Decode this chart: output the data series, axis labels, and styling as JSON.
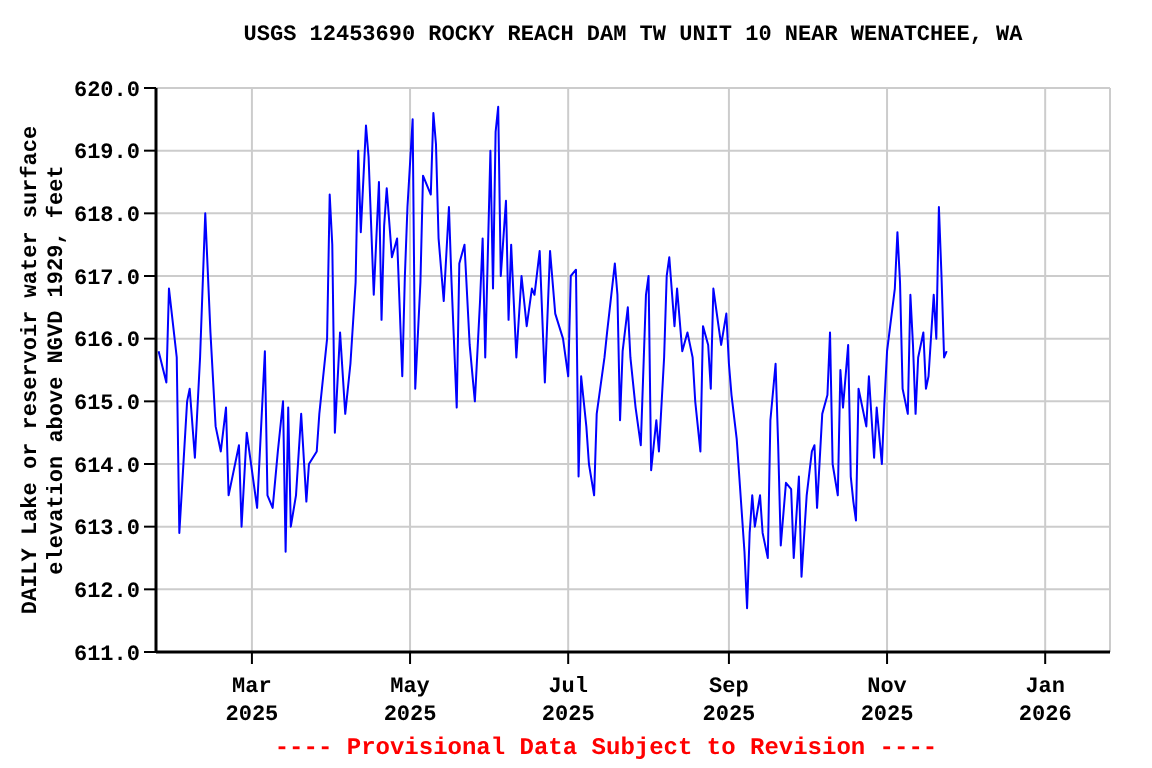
{
  "chart_data": {
    "type": "line",
    "title": "USGS 12453690 ROCKY REACH DAM TW UNIT 10 NEAR WENATCHEE, WA",
    "ylabel": "DAILY Lake or reservoir water surface\nelevation above NGVD 1929, feet",
    "annotations": [
      "---- Provisional Data Subject to Revision ----"
    ],
    "x": [
      "2025-01-24",
      "2025-01-27",
      "2025-01-28",
      "2025-01-31",
      "2025-02-01",
      "2025-02-04",
      "2025-02-05",
      "2025-02-07",
      "2025-02-09",
      "2025-02-11",
      "2025-02-13",
      "2025-02-15",
      "2025-02-17",
      "2025-02-19",
      "2025-02-20",
      "2025-02-24",
      "2025-02-25",
      "2025-02-27",
      "2025-03-02",
      "2025-03-03",
      "2025-03-06",
      "2025-03-07",
      "2025-03-09",
      "2025-03-11",
      "2025-03-13",
      "2025-03-14",
      "2025-03-15",
      "2025-03-16",
      "2025-03-18",
      "2025-03-20",
      "2025-03-22",
      "2025-03-23",
      "2025-03-26",
      "2025-03-27",
      "2025-03-30",
      "2025-03-31",
      "2025-04-01",
      "2025-04-02",
      "2025-04-04",
      "2025-04-06",
      "2025-04-08",
      "2025-04-10",
      "2025-04-11",
      "2025-04-12",
      "2025-04-14",
      "2025-04-15",
      "2025-04-17",
      "2025-04-19",
      "2025-04-20",
      "2025-04-21",
      "2025-04-22",
      "2025-04-24",
      "2025-04-26",
      "2025-04-28",
      "2025-04-29",
      "2025-04-30",
      "2025-05-02",
      "2025-05-03",
      "2025-05-05",
      "2025-05-06",
      "2025-05-09",
      "2025-05-10",
      "2025-05-11",
      "2025-05-12",
      "2025-05-14",
      "2025-05-16",
      "2025-05-17",
      "2025-05-19",
      "2025-05-20",
      "2025-05-22",
      "2025-05-24",
      "2025-05-26",
      "2025-05-28",
      "2025-05-29",
      "2025-05-30",
      "2025-06-01",
      "2025-06-02",
      "2025-06-03",
      "2025-06-04",
      "2025-06-05",
      "2025-06-07",
      "2025-06-08",
      "2025-06-09",
      "2025-06-11",
      "2025-06-13",
      "2025-06-15",
      "2025-06-17",
      "2025-06-18",
      "2025-06-20",
      "2025-06-22",
      "2025-06-24",
      "2025-06-26",
      "2025-06-29",
      "2025-07-01",
      "2025-07-02",
      "2025-07-04",
      "2025-07-05",
      "2025-07-06",
      "2025-07-08",
      "2025-07-09",
      "2025-07-11",
      "2025-07-12",
      "2025-07-15",
      "2025-07-16",
      "2025-07-19",
      "2025-07-20",
      "2025-07-21",
      "2025-07-22",
      "2025-07-24",
      "2025-07-25",
      "2025-07-27",
      "2025-07-29",
      "2025-07-31",
      "2025-08-01",
      "2025-08-02",
      "2025-08-04",
      "2025-08-05",
      "2025-08-07",
      "2025-08-08",
      "2025-08-09",
      "2025-08-11",
      "2025-08-12",
      "2025-08-14",
      "2025-08-16",
      "2025-08-18",
      "2025-08-19",
      "2025-08-21",
      "2025-08-22",
      "2025-08-24",
      "2025-08-25",
      "2025-08-26",
      "2025-08-28",
      "2025-08-29",
      "2025-08-31",
      "2025-09-01",
      "2025-09-02",
      "2025-09-04",
      "2025-09-05",
      "2025-09-07",
      "2025-09-08",
      "2025-09-09",
      "2025-09-10",
      "2025-09-11",
      "2025-09-13",
      "2025-09-14",
      "2025-09-16",
      "2025-09-17",
      "2025-09-19",
      "2025-09-20",
      "2025-09-21",
      "2025-09-23",
      "2025-09-25",
      "2025-09-26",
      "2025-09-28",
      "2025-09-29",
      "2025-10-01",
      "2025-10-03",
      "2025-10-04",
      "2025-10-05",
      "2025-10-07",
      "2025-10-09",
      "2025-10-10",
      "2025-10-11",
      "2025-10-13",
      "2025-10-14",
      "2025-10-15",
      "2025-10-17",
      "2025-10-18",
      "2025-10-19",
      "2025-10-20",
      "2025-10-21",
      "2025-10-24",
      "2025-10-25",
      "2025-10-27",
      "2025-10-28",
      "2025-10-30",
      "2025-10-31",
      "2025-11-01",
      "2025-11-04",
      "2025-11-05",
      "2025-11-06",
      "2025-11-07",
      "2025-11-09",
      "2025-11-10",
      "2025-11-11",
      "2025-11-12",
      "2025-11-13",
      "2025-11-15",
      "2025-11-16",
      "2025-11-17",
      "2025-11-19",
      "2025-11-20",
      "2025-11-21",
      "2025-11-22",
      "2025-11-23",
      "2025-11-24"
    ],
    "series": [
      {
        "color": "#0000ff",
        "values": [
          615.8,
          615.3,
          616.8,
          615.7,
          612.9,
          615.0,
          615.2,
          614.1,
          615.7,
          618.0,
          616.1,
          614.6,
          614.2,
          614.9,
          613.5,
          614.3,
          613.0,
          614.5,
          613.6,
          613.3,
          615.8,
          613.5,
          613.3,
          614.2,
          615.0,
          612.6,
          614.9,
          613.0,
          613.5,
          614.8,
          613.4,
          614.0,
          614.2,
          614.8,
          616.0,
          618.3,
          617.5,
          614.5,
          616.1,
          614.8,
          615.6,
          616.9,
          619.0,
          617.7,
          619.4,
          618.9,
          616.7,
          618.5,
          616.3,
          617.8,
          618.4,
          617.3,
          617.6,
          615.4,
          617.0,
          618.1,
          619.5,
          615.2,
          616.9,
          618.6,
          618.3,
          619.6,
          619.1,
          617.6,
          616.6,
          618.1,
          616.9,
          614.9,
          617.2,
          617.5,
          615.9,
          615.0,
          616.6,
          617.6,
          615.7,
          619.0,
          616.8,
          619.3,
          619.7,
          617.0,
          618.2,
          616.3,
          617.5,
          615.7,
          617.0,
          616.2,
          616.8,
          616.7,
          617.4,
          615.3,
          617.4,
          616.4,
          616.0,
          615.4,
          617.0,
          617.1,
          613.8,
          615.4,
          614.6,
          614.0,
          613.5,
          614.8,
          615.7,
          616.1,
          617.2,
          616.7,
          614.7,
          615.8,
          616.5,
          615.7,
          614.9,
          614.3,
          616.7,
          617.0,
          613.9,
          614.7,
          614.2,
          615.7,
          617.0,
          617.3,
          616.2,
          616.8,
          615.8,
          616.1,
          615.7,
          615.0,
          614.2,
          616.2,
          615.9,
          615.2,
          616.8,
          616.2,
          615.9,
          616.4,
          615.6,
          615.1,
          614.4,
          613.8,
          612.6,
          611.7,
          612.9,
          613.5,
          613.0,
          613.5,
          612.9,
          612.5,
          614.7,
          615.6,
          614.3,
          612.7,
          613.7,
          613.6,
          612.5,
          613.8,
          612.2,
          613.5,
          614.2,
          614.3,
          613.3,
          614.8,
          615.1,
          616.1,
          614.0,
          613.5,
          615.5,
          614.9,
          615.9,
          613.8,
          613.4,
          613.1,
          615.2,
          614.6,
          615.4,
          614.1,
          614.9,
          614.0,
          615.0,
          615.8,
          616.8,
          617.7,
          616.9,
          615.2,
          614.8,
          616.7,
          615.9,
          614.8,
          615.7,
          616.1,
          615.2,
          615.4,
          616.7,
          616.0,
          618.1,
          617.0,
          615.7,
          615.8
        ]
      }
    ],
    "xlim": [
      "2025-01-23",
      "2026-01-26"
    ],
    "xticks": [
      {
        "value": "2025-03-01",
        "label": "Mar\n2025"
      },
      {
        "value": "2025-05-01",
        "label": "May\n2025"
      },
      {
        "value": "2025-07-01",
        "label": "Jul\n2025"
      },
      {
        "value": "2025-09-01",
        "label": "Sep\n2025"
      },
      {
        "value": "2025-11-01",
        "label": "Nov\n2025"
      },
      {
        "value": "2026-01-01",
        "label": "Jan\n2026"
      }
    ],
    "ylim": [
      611,
      620
    ],
    "yticks": [
      {
        "value": 611,
        "label": "611.0"
      },
      {
        "value": 612,
        "label": "612.0"
      },
      {
        "value": 613,
        "label": "613.0"
      },
      {
        "value": 614,
        "label": "614.0"
      },
      {
        "value": 615,
        "label": "615.0"
      },
      {
        "value": 616,
        "label": "616.0"
      },
      {
        "value": 617,
        "label": "617.0"
      },
      {
        "value": 618,
        "label": "618.0"
      },
      {
        "value": 619,
        "label": "619.0"
      },
      {
        "value": 620,
        "label": "620.0"
      }
    ],
    "grid": true,
    "marker": "none",
    "line_style": "solid"
  }
}
